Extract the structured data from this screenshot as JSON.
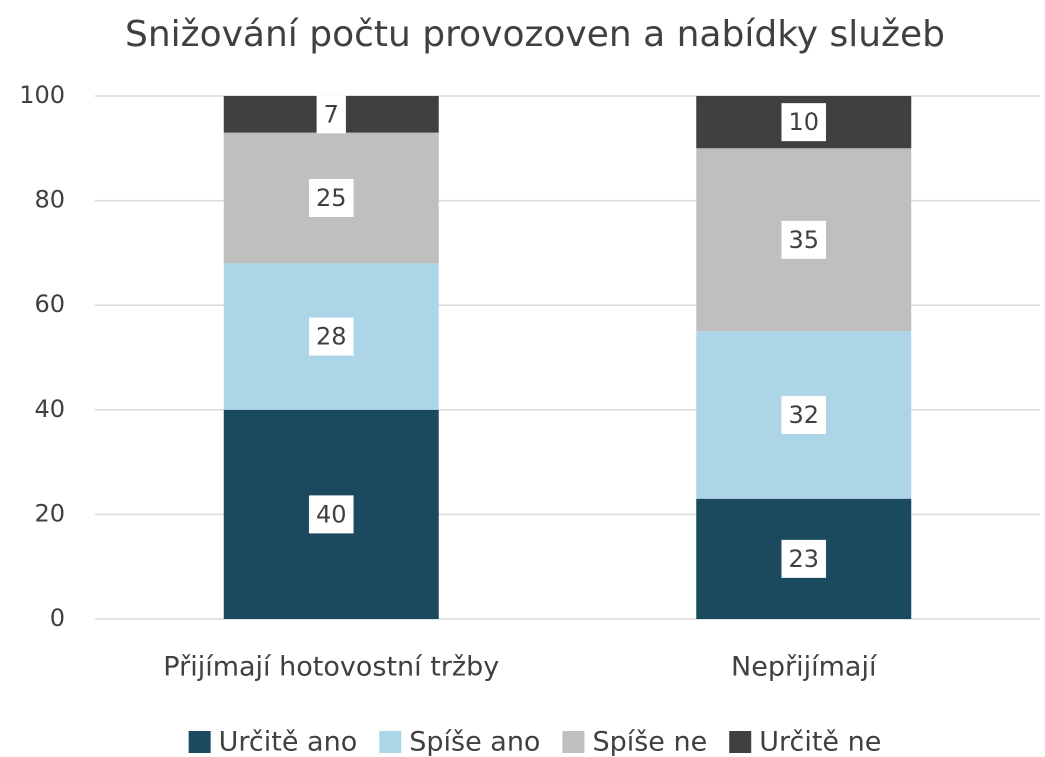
{
  "chart_data": {
    "type": "stacked_bar",
    "title": "Snižování počtu provozoven a nabídky služeb",
    "categories": [
      "Přijímají hotovostní tržby",
      "Nepřijímají"
    ],
    "series": [
      {
        "name": "Určitě ano",
        "color": "#1b4a5e",
        "values": [
          40,
          23
        ]
      },
      {
        "name": "Spíše ano",
        "color": "#acd5e8",
        "values": [
          28,
          32
        ]
      },
      {
        "name": "Spíše ne",
        "color": "#bfbfbf",
        "values": [
          25,
          35
        ]
      },
      {
        "name": "Určitě ne",
        "color": "#404040",
        "values": [
          7,
          10
        ]
      }
    ],
    "ylim": [
      0,
      100
    ],
    "yticks": [
      0,
      20,
      40,
      60,
      80,
      100
    ],
    "grid": true,
    "legend": "bottom"
  }
}
